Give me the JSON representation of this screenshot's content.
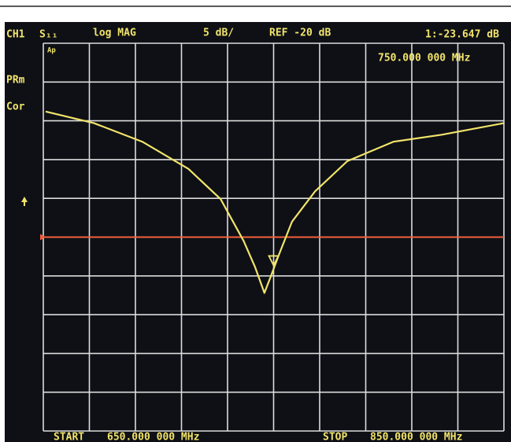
{
  "chart_data": {
    "type": "line",
    "channel": "CH1",
    "parameter": "S₁₁",
    "format": "log MAG",
    "scale": "5 dB/",
    "reference": {
      "value": -20,
      "label": "REF -20 dB",
      "color": "#f2603c"
    },
    "marker": {
      "x": 750,
      "value": -23.647,
      "label": "1:-23.647 dB",
      "x_label": "750.000 000 MHz"
    },
    "side_labels": [
      "PRm",
      "Cor"
    ],
    "corner_label": "Ap",
    "start_label": "START",
    "start_value": "650.000 000 MHz",
    "stop_label": "STOP",
    "stop_value": "850.000 000 MHz",
    "xlim": [
      650,
      850
    ],
    "ylim": [
      -45,
      5
    ],
    "grid": true,
    "series": [
      {
        "name": "S11",
        "color": "#f2e46a",
        "x": [
          651,
          672,
          693,
          713,
          727,
          737,
          742,
          746,
          749,
          752,
          758,
          768,
          782,
          802,
          823,
          850
        ],
        "values": [
          -3.8,
          -5.3,
          -7.7,
          -11.2,
          -15.1,
          -20.5,
          -23.9,
          -27.2,
          -24.9,
          -22.5,
          -18.0,
          -14.1,
          -10.2,
          -7.7,
          -6.8,
          -5.3
        ]
      }
    ]
  }
}
